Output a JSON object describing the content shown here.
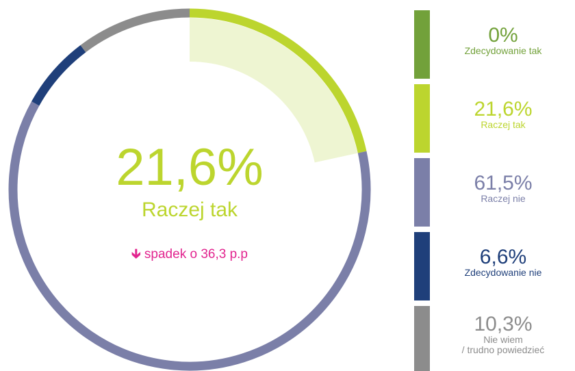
{
  "chart_data": {
    "type": "donut",
    "categories": [
      "Zdecydowanie tak",
      "Raczej tak",
      "Raczej nie",
      "Zdecydowanie nie",
      "Nie wiem\n/ trudno powiedzieć"
    ],
    "values": [
      0,
      21.6,
      61.5,
      6.6,
      10.3
    ],
    "value_labels": [
      "0%",
      "21,6%",
      "61,5%",
      "6,6%",
      "10,3%"
    ],
    "colors": [
      "#72a13a",
      "#bcd52e",
      "#7b7fa8",
      "#1f3f7a",
      "#8c8c8c"
    ],
    "highlight": 1,
    "annotation": "spadek o 36,3 p.p"
  }
}
